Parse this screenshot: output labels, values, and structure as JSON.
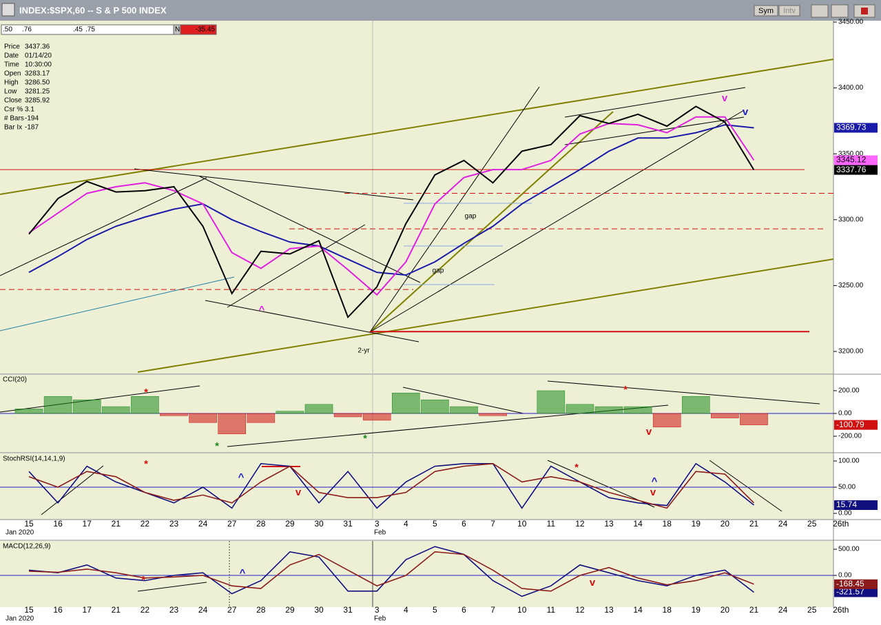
{
  "window": {
    "title": "INDEX:$SPX,60 -- S & P 500 INDEX",
    "buttons": [
      "Sym",
      "Intv"
    ]
  },
  "toolbar": {
    "fields": [
      ".50",
      ".76",
      ".45",
      ".75"
    ],
    "flag": "N",
    "change": "-35.45"
  },
  "info": {
    "rows": [
      [
        "Price",
        "3437.36"
      ],
      [
        "Date",
        "01/14/20"
      ],
      [
        "Time",
        "10:30:00"
      ],
      [
        "Open",
        "3283.17"
      ],
      [
        "High",
        "3286.50"
      ],
      [
        "Low",
        "3281.25"
      ],
      [
        "Close",
        "3285.92"
      ],
      [
        "Csr %",
        "3.1"
      ],
      [
        "# Bars",
        "-194"
      ],
      [
        "Bar Ix",
        "-187"
      ]
    ]
  },
  "x_axis": {
    "months": [
      "Jan 2020",
      "Feb"
    ]
  },
  "chart_data": [
    {
      "type": "line",
      "categories": [
        "15",
        "16",
        "17",
        "21",
        "22",
        "23",
        "24",
        "27",
        "28",
        "29",
        "30",
        "31",
        "3",
        "4",
        "5",
        "6",
        "7",
        "10",
        "11",
        "12",
        "13",
        "14",
        "18",
        "19",
        "20",
        "21",
        "24",
        "25",
        "26th"
      ],
      "series": [
        {
          "color": "#1a1aa8",
          "values": [
            3260,
            3272,
            3285,
            3295,
            3302,
            3308,
            3312,
            3300,
            3291,
            3283,
            3280,
            3270,
            3260,
            3258,
            3268,
            3282,
            3295,
            3312,
            3325,
            3338,
            3352,
            3362,
            3362,
            3366,
            3372,
            3369.73,
            null,
            null,
            null
          ]
        },
        {
          "color": "#e020e0",
          "values": [
            3290,
            3305,
            3320,
            3325,
            3328,
            3322,
            3312,
            3275,
            3263,
            3278,
            3280,
            3262,
            3243,
            3268,
            3312,
            3332,
            3338,
            3338,
            3345,
            3365,
            3373,
            3372,
            3366,
            3378,
            3378,
            3345.12,
            null,
            null,
            null
          ]
        },
        {
          "color": "#000000",
          "values": [
            3289,
            3316,
            3329,
            3321,
            3322,
            3325,
            3295,
            3244,
            3276,
            3274,
            3284,
            3226,
            3249,
            3297,
            3334,
            3345,
            3328,
            3352,
            3357,
            3379,
            3373,
            3380,
            3371,
            3386,
            3374,
            3337.76,
            null,
            null,
            null
          ]
        }
      ],
      "reference_lines": [
        3338,
        3320,
        3293,
        3247,
        3215
      ],
      "annotations": [
        "gap",
        "gap",
        "2-yr",
        "^",
        "v",
        "v"
      ],
      "ylim": [
        3184.3,
        3452.1
      ],
      "yticks": [
        {
          "value": 3450,
          "label": "3450.00"
        },
        {
          "value": 3400,
          "label": "3400.00"
        },
        {
          "value": 3350,
          "label": "3350.00"
        },
        {
          "value": 3300,
          "label": "3300.00"
        },
        {
          "value": 3250,
          "label": "3250.00"
        },
        {
          "value": 3200,
          "label": "3200.00"
        }
      ]
    },
    {
      "type": "bar",
      "title": "CCI(20)",
      "series": [
        {
          "color": "#1a8a1a",
          "values": [
            40,
            150,
            120,
            60,
            150,
            -20,
            -80,
            -180,
            -80,
            20,
            80,
            -30,
            -60,
            180,
            120,
            60,
            -20,
            0,
            200,
            80,
            60,
            60,
            -120,
            150,
            -40,
            -100.79,
            null,
            null,
            null
          ]
        }
      ],
      "negative_color": "#d01010",
      "reference_lines": [
        0
      ],
      "annotations": [
        "*",
        "*",
        "*",
        "*",
        "v"
      ],
      "ylim": [
        -333,
        333
      ],
      "yticks": [
        {
          "value": 200,
          "label": "200.00"
        },
        {
          "value": 0,
          "label": "0.00"
        },
        {
          "value": -200,
          "label": "-200.00"
        }
      ]
    },
    {
      "type": "line",
      "title": "StochRSI(14,14,1,9)",
      "series": [
        {
          "color": "#101080",
          "values": [
            80,
            20,
            90,
            60,
            40,
            20,
            50,
            10,
            95,
            90,
            20,
            80,
            10,
            60,
            90,
            95,
            95,
            10,
            90,
            60,
            30,
            20,
            15,
            95,
            60,
            15.74,
            null,
            null,
            null
          ]
        },
        {
          "color": "#8b1a1a",
          "values": [
            70,
            50,
            80,
            70,
            40,
            25,
            35,
            20,
            60,
            90,
            40,
            30,
            30,
            40,
            80,
            90,
            95,
            60,
            70,
            60,
            40,
            25,
            10,
            80,
            75,
            20,
            null,
            null,
            null
          ]
        }
      ],
      "reference_lines": [
        50
      ],
      "annotations": [
        "*",
        "^",
        "v",
        "*",
        "^",
        "v"
      ],
      "ylim": [
        -9.2,
        111.8
      ],
      "yticks": [
        {
          "value": 100,
          "label": "100.00"
        },
        {
          "value": 50,
          "label": "50.00"
        },
        {
          "value": 0,
          "label": "0.00"
        }
      ]
    },
    {
      "type": "line",
      "title": "MACD(12,26,9)",
      "series": [
        {
          "color": "#101080",
          "values": [
            100,
            50,
            200,
            -50,
            -100,
            0,
            50,
            -350,
            -100,
            450,
            350,
            -300,
            -300,
            300,
            550,
            400,
            -100,
            -400,
            -200,
            200,
            50,
            -100,
            -200,
            0,
            100,
            -321.57,
            null,
            null,
            null
          ]
        },
        {
          "color": "#8b1a1a",
          "values": [
            80,
            60,
            120,
            50,
            -50,
            -30,
            0,
            -200,
            -250,
            200,
            400,
            100,
            -200,
            0,
            450,
            400,
            100,
            -250,
            -300,
            0,
            150,
            -50,
            -180,
            -100,
            50,
            -168.45,
            null,
            null,
            null
          ]
        }
      ],
      "reference_lines": [
        0
      ],
      "annotations": [
        "*",
        "^",
        "v"
      ],
      "ylim": [
        -592,
        632
      ],
      "yticks": [
        {
          "value": 500,
          "label": "500.00"
        },
        {
          "value": 0,
          "label": "0.00"
        }
      ]
    }
  ]
}
